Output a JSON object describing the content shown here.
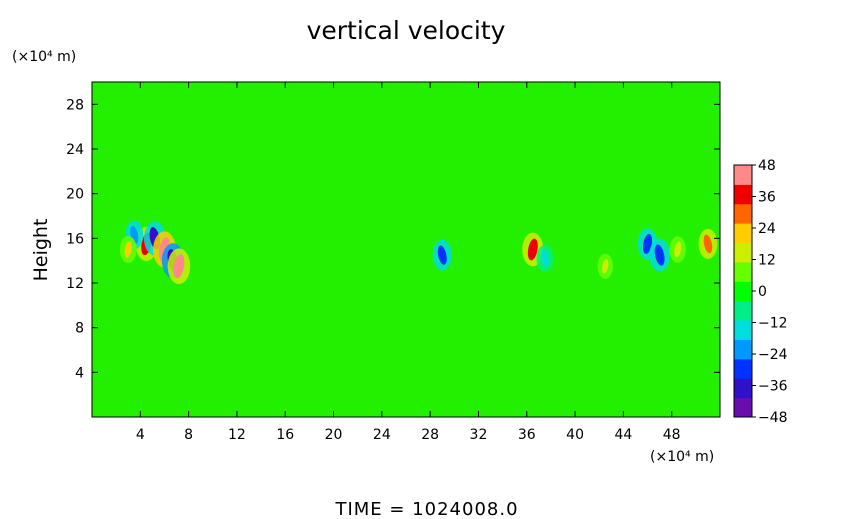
{
  "chart_data": {
    "type": "heatmap",
    "title": "vertical velocity",
    "ylabel": "Height",
    "xunit": "(×10⁴ m)",
    "yunit": "(×10⁴ m)",
    "xlim": [
      0,
      52
    ],
    "ylim": [
      0,
      30
    ],
    "xticks": [
      "4",
      "8",
      "12",
      "16",
      "20",
      "24",
      "28",
      "32",
      "36",
      "40",
      "44",
      "48"
    ],
    "yticks": [
      "4",
      "8",
      "12",
      "16",
      "20",
      "24",
      "28"
    ],
    "xtick_values": [
      4,
      8,
      12,
      16,
      20,
      24,
      28,
      32,
      36,
      40,
      44,
      48
    ],
    "ytick_values": [
      4,
      8,
      12,
      16,
      20,
      24,
      28
    ],
    "colorbar": {
      "min": -48,
      "max": 48,
      "ticks": [
        "48",
        "36",
        "24",
        "12",
        "0",
        "−12",
        "−24",
        "−36",
        "−48"
      ],
      "tick_values": [
        48,
        36,
        24,
        12,
        0,
        -12,
        -24,
        -36,
        -48
      ],
      "colors": [
        "#6a0dad",
        "#3010c8",
        "#0033ff",
        "#0099ff",
        "#00dddd",
        "#00ee88",
        "#00ff00",
        "#66ff00",
        "#ccee00",
        "#ffcc00",
        "#ff6600",
        "#ee0000",
        "#ff8888"
      ]
    },
    "background_value": 0,
    "features": [
      {
        "x": 4.5,
        "y": 15.5,
        "value": 40
      },
      {
        "x": 5.2,
        "y": 16.0,
        "value": -40
      },
      {
        "x": 6.0,
        "y": 15.0,
        "value": 45
      },
      {
        "x": 6.7,
        "y": 14.0,
        "value": -42
      },
      {
        "x": 7.2,
        "y": 13.5,
        "value": 44
      },
      {
        "x": 3.5,
        "y": 16.3,
        "value": -25
      },
      {
        "x": 3.0,
        "y": 15.0,
        "value": 20
      },
      {
        "x": 29.0,
        "y": 14.5,
        "value": -30
      },
      {
        "x": 36.5,
        "y": 15.0,
        "value": 38
      },
      {
        "x": 37.5,
        "y": 14.2,
        "value": -20
      },
      {
        "x": 46.0,
        "y": 15.5,
        "value": -32
      },
      {
        "x": 47.0,
        "y": 14.5,
        "value": -36
      },
      {
        "x": 48.5,
        "y": 15.0,
        "value": 18
      },
      {
        "x": 51.0,
        "y": 15.5,
        "value": 28
      },
      {
        "x": 42.5,
        "y": 13.5,
        "value": 14
      }
    ]
  },
  "footer": {
    "time_label": "TIME  =  1024008.0"
  }
}
